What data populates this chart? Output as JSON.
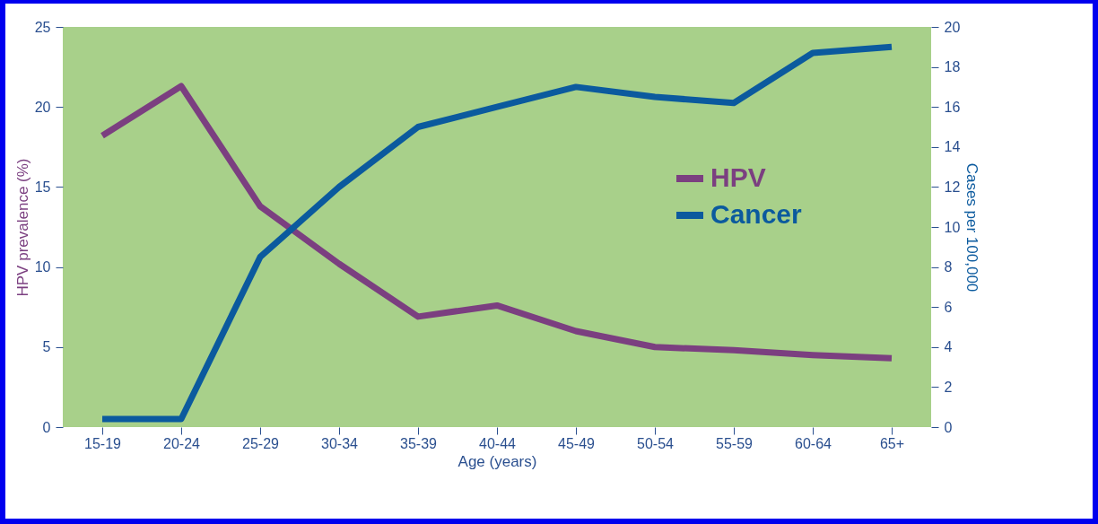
{
  "chart_data": {
    "type": "line",
    "xlabel": "Age (years)",
    "ylabel": "HPV prevalence (%)",
    "y2label": "Cases per 100,000",
    "categories": [
      "15-19",
      "20-24",
      "25-29",
      "30-34",
      "35-39",
      "40-44",
      "45-49",
      "50-54",
      "55-59",
      "60-64",
      "65+"
    ],
    "series": [
      {
        "name": "HPV",
        "color": "#7b3f80",
        "values": [
          18.2,
          21.3,
          13.8,
          10.2,
          6.9,
          7.6,
          6.0,
          5.0,
          4.8,
          4.5,
          4.3
        ]
      },
      {
        "name": "Cancer",
        "color": "#0b5a9e",
        "axis": "y2",
        "values": [
          0.4,
          0.4,
          8.5,
          12.0,
          15.0,
          16.0,
          17.0,
          16.5,
          16.2,
          18.7,
          19.0
        ]
      }
    ],
    "ylim": [
      0,
      25
    ],
    "yticks": [
      0,
      5,
      10,
      15,
      20,
      25
    ],
    "y2lim": [
      0,
      20
    ],
    "y2ticks": [
      0,
      2,
      4,
      6,
      8,
      10,
      12,
      14,
      16,
      18,
      20
    ],
    "grid": false,
    "legend": "right",
    "marker": "none",
    "line_style": "solid"
  }
}
